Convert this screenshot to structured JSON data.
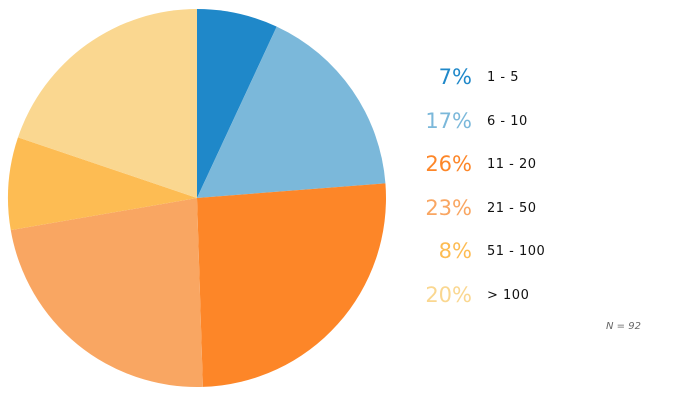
{
  "chart_data": {
    "type": "pie",
    "categories": [
      "1 - 5",
      "6 - 10",
      "11 - 20",
      "21 - 50",
      "51 - 100",
      "> 100"
    ],
    "values": [
      7,
      17,
      26,
      23,
      8,
      20
    ],
    "labels": [
      "7%",
      "17%",
      "26%",
      "23%",
      "8%",
      "20%"
    ],
    "colors": [
      "#1f88c9",
      "#7bb8da",
      "#fd8628",
      "#f9a662",
      "#fdbc53",
      "#fad790"
    ],
    "legend_position": "right",
    "note": "N = 92"
  }
}
